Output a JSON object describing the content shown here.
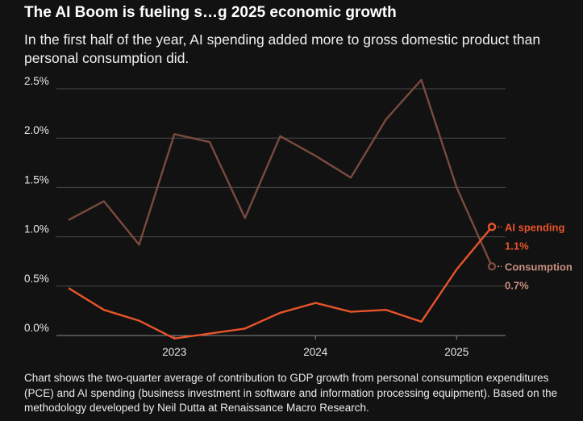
{
  "title": "The AI Boom is fueling s…g 2025 economic growth",
  "subtitle": "In the first half of the year, AI spending added more to gross domestic product than personal consumption did.",
  "footnote": "Chart shows the two-quarter average of contribution to GDP growth from personal consumption expenditures (PCE) and AI spending (business investment in software and information processing equipment). Based on the methodology developed by Neil Dutta at Renaissance Macro Research.",
  "colors": {
    "ai": "#e8542a",
    "consumption": "#7a4a3e",
    "consumption_label": "#c8907e",
    "grid": "#4a4a4a",
    "text": "#e8e8e8"
  },
  "chart_data": {
    "type": "line",
    "title": "",
    "xlabel": "",
    "ylabel": "",
    "ylim": [
      0,
      2.5
    ],
    "yticks": [
      "0.0%",
      "0.5%",
      "1.0%",
      "1.5%",
      "2.0%",
      "2.5%"
    ],
    "xticks": [
      "2023",
      "2024",
      "2025"
    ],
    "x": [
      "2022-Q2",
      "2022-Q3",
      "2022-Q4",
      "2023-Q1",
      "2023-Q2",
      "2023-Q3",
      "2023-Q4",
      "2024-Q1",
      "2024-Q2",
      "2024-Q3",
      "2024-Q4",
      "2025-Q1",
      "2025-Q2"
    ],
    "grid": true,
    "legend": "end-labels-right",
    "series": [
      {
        "name": "Consumption",
        "end_label": "0.7%",
        "values": [
          1.17,
          1.36,
          0.92,
          2.04,
          1.96,
          1.19,
          2.02,
          1.82,
          1.6,
          2.19,
          2.59,
          1.5,
          0.7
        ]
      },
      {
        "name": "AI spending",
        "end_label": "1.1%",
        "values": [
          0.48,
          0.26,
          0.15,
          -0.03,
          0.02,
          0.07,
          0.23,
          0.33,
          0.24,
          0.26,
          0.14,
          0.67,
          1.1
        ]
      }
    ]
  }
}
